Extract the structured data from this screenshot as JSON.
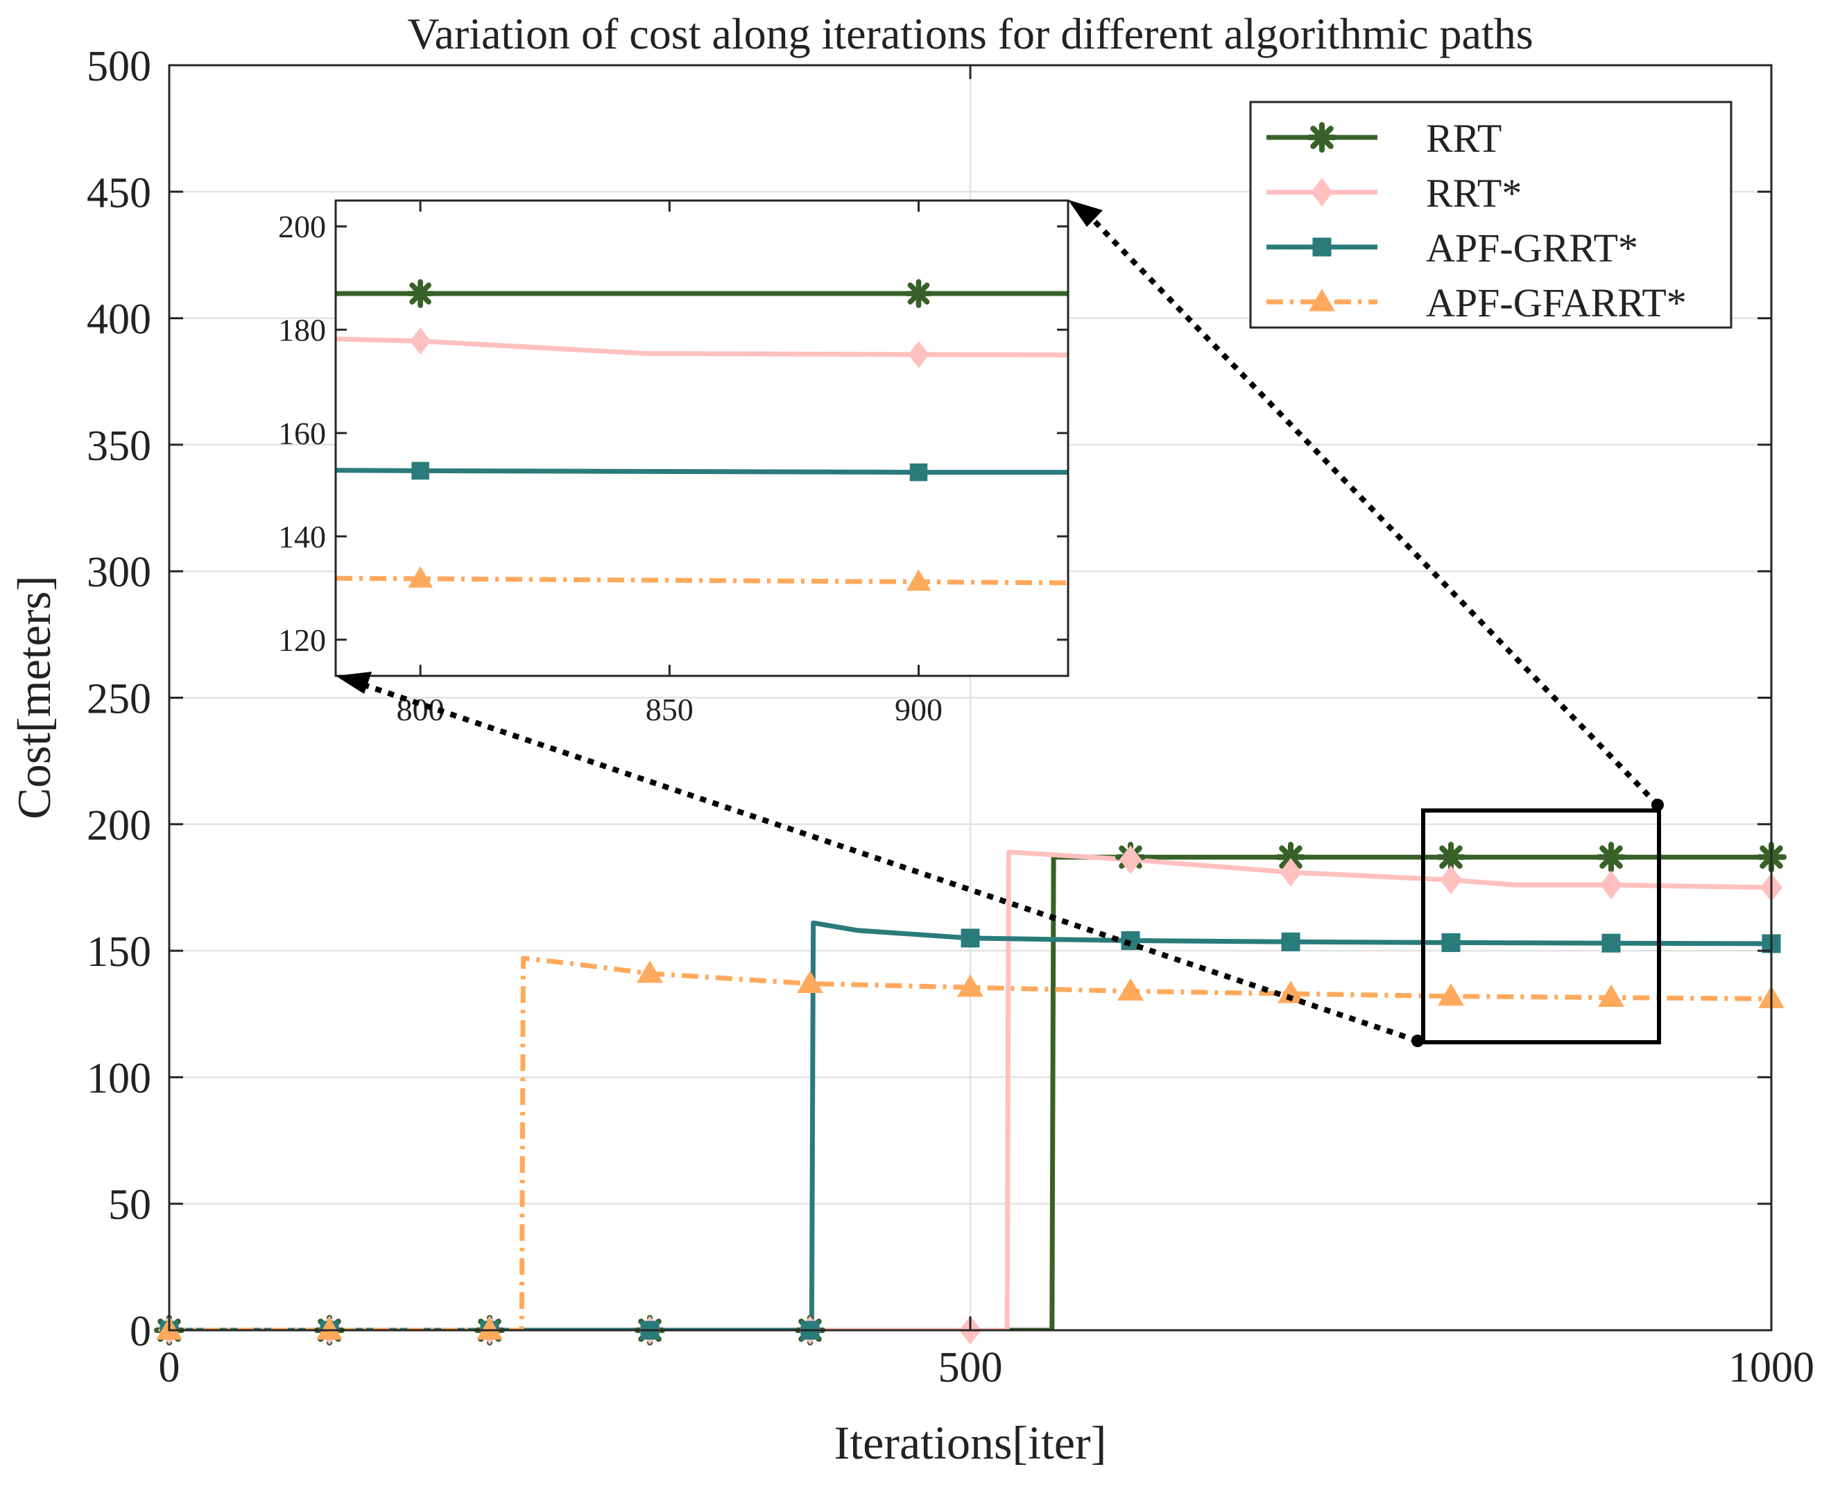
{
  "chart_data": {
    "type": "line",
    "title": "Variation of cost along iterations for different algorithmic paths",
    "xlabel": "Iterations[iter]",
    "ylabel": "Cost[meters]",
    "xlim": [
      0,
      1000
    ],
    "ylim": [
      0,
      500
    ],
    "xticks": [
      0,
      500,
      1000
    ],
    "yticks": [
      0,
      50,
      100,
      150,
      200,
      250,
      300,
      350,
      400,
      450,
      500
    ],
    "grid": true,
    "legend_position": "top-right",
    "series": [
      {
        "name": "RRT",
        "color": "#386128",
        "line_style": "solid",
        "marker": "asterisk",
        "x": [
          0,
          100,
          200,
          300,
          400,
          500,
          551,
          552,
          600,
          700,
          800,
          900,
          1000
        ],
        "y": [
          0,
          0,
          0,
          0,
          0,
          0,
          0,
          187,
          187,
          187,
          187,
          187,
          187
        ],
        "marker_x": [
          0,
          100,
          200,
          300,
          400,
          600,
          700,
          800,
          900,
          1000
        ]
      },
      {
        "name": "RRT*",
        "color": "#ffc0c0",
        "line_style": "solid",
        "marker": "diamond",
        "x": [
          0,
          100,
          200,
          300,
          400,
          500,
          523,
          524,
          600,
          700,
          800,
          840,
          900,
          1000
        ],
        "y": [
          0,
          0,
          0,
          0,
          0,
          0,
          0,
          189,
          186,
          181,
          178,
          176,
          176,
          175
        ],
        "marker_x": [
          0,
          100,
          200,
          300,
          400,
          500,
          600,
          700,
          800,
          900,
          1000
        ]
      },
      {
        "name": "APF-GRRT*",
        "color": "#2a7b7b",
        "line_style": "solid",
        "marker": "square",
        "x": [
          0,
          100,
          200,
          300,
          401,
          402,
          430,
          500,
          600,
          700,
          800,
          900,
          1000
        ],
        "y": [
          0,
          0,
          0,
          0,
          0,
          161,
          158,
          155,
          154,
          153.5,
          153.2,
          153,
          152.8
        ],
        "marker_x": [
          0,
          100,
          200,
          300,
          400,
          500,
          600,
          700,
          800,
          900,
          1000
        ]
      },
      {
        "name": "APF-GFARRT*",
        "color": "#ffa95c",
        "line_style": "dash-dot",
        "marker": "triangle",
        "x": [
          0,
          100,
          200,
          220,
          221,
          250,
          300,
          400,
          500,
          600,
          700,
          800,
          900,
          1000
        ],
        "y": [
          0,
          0,
          0,
          0,
          147,
          145,
          141,
          137,
          135.5,
          134,
          133,
          132,
          131.5,
          131
        ],
        "marker_x": [
          0,
          100,
          200,
          300,
          400,
          500,
          600,
          700,
          800,
          900,
          1000
        ]
      }
    ],
    "inset": {
      "xlim": [
        783,
        930
      ],
      "ylim": [
        113,
        205
      ],
      "xticks": [
        800,
        850,
        900
      ],
      "yticks": [
        120,
        140,
        160,
        180,
        200
      ],
      "series": [
        {
          "name": "RRT",
          "x": [
            783,
            930
          ],
          "y": [
            187,
            187
          ],
          "marker_x": [
            800,
            900
          ]
        },
        {
          "name": "RRT*",
          "x": [
            783,
            800,
            845,
            900,
            930
          ],
          "y": [
            178.2,
            177.8,
            175.4,
            175.2,
            175.1
          ],
          "marker_x": [
            800,
            900
          ]
        },
        {
          "name": "APF-GRRT*",
          "x": [
            783,
            800,
            900,
            930
          ],
          "y": [
            152.8,
            152.7,
            152.4,
            152.4
          ],
          "marker_x": [
            800,
            900
          ]
        },
        {
          "name": "APF-GFARRT*",
          "x": [
            783,
            800,
            900,
            930
          ],
          "y": [
            131.9,
            131.8,
            131.2,
            131.0
          ],
          "marker_x": [
            800,
            900
          ]
        }
      ]
    },
    "zoom_box": {
      "x_range": [
        783,
        930
      ],
      "y_range": [
        113,
        205
      ]
    }
  }
}
